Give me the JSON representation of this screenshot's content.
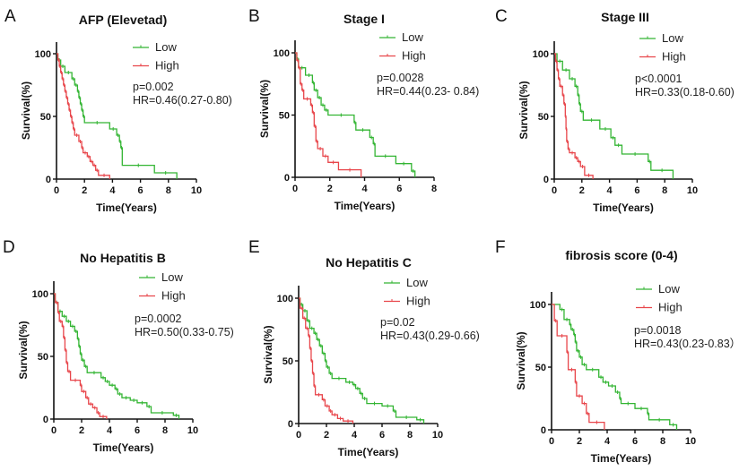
{
  "colors": {
    "Low": "#33b533",
    "High": "#e8464b",
    "axis": "#111111"
  },
  "chart_data": [
    {
      "type": "line",
      "letter": "A",
      "title": "AFP (Elevetad)",
      "xlabel": "Time(Years)",
      "ylabel": "Survival(%)",
      "xlim": [
        0,
        10
      ],
      "ylim": [
        0,
        100
      ],
      "xticks": [
        "0",
        "2",
        "4",
        "6",
        "8",
        "10"
      ],
      "yticks": [
        "0",
        "50",
        "100"
      ],
      "p": "p=0.002",
      "hr": "HR=0.46(0.27-0.80)",
      "legend_position": "top-right",
      "series": [
        {
          "name": "Low",
          "x": [
            0,
            0.1,
            0.3,
            0.6,
            1.1,
            1.3,
            1.5,
            1.6,
            1.7,
            1.8,
            1.9,
            2.0,
            3.8,
            4.3,
            4.5,
            4.6,
            4.7,
            7.0,
            8.6
          ],
          "y": [
            100,
            95,
            90,
            85,
            80,
            75,
            70,
            65,
            60,
            55,
            50,
            45,
            40,
            35,
            30,
            25,
            11,
            5,
            0
          ]
        },
        {
          "name": "High",
          "x": [
            0,
            0.1,
            0.2,
            0.3,
            0.4,
            0.5,
            0.6,
            0.7,
            0.8,
            0.9,
            1.0,
            1.1,
            1.2,
            1.3,
            1.6,
            1.8,
            1.9,
            2.2,
            2.4,
            2.6,
            2.8,
            3.0,
            3.8
          ],
          "y": [
            100,
            95,
            90,
            85,
            80,
            75,
            70,
            65,
            60,
            55,
            50,
            45,
            40,
            35,
            30,
            25,
            21,
            18,
            14,
            11,
            7,
            3,
            0
          ]
        }
      ]
    },
    {
      "type": "line",
      "letter": "B",
      "title": "Stage I",
      "xlabel": "Time(Years)",
      "ylabel": "Survival(%)",
      "xlim": [
        0,
        8
      ],
      "ylim": [
        0,
        100
      ],
      "xticks": [
        "0",
        "2",
        "4",
        "6",
        "8"
      ],
      "yticks": [
        "0",
        "50",
        "100"
      ],
      "p": "p=0.0028",
      "hr": "HR=0.44(0.23- 0.84)",
      "legend_position": "top-right",
      "series": [
        {
          "name": "Low",
          "x": [
            0,
            0.1,
            0.2,
            0.6,
            1.0,
            1.1,
            1.3,
            1.5,
            1.7,
            1.9,
            3.4,
            3.5,
            4.3,
            4.5,
            4.6,
            5.8,
            6.7,
            6.9
          ],
          "y": [
            100,
            95,
            88,
            82,
            76,
            70,
            64,
            58,
            54,
            50,
            44,
            38,
            32,
            27,
            17,
            11,
            5,
            0
          ]
        },
        {
          "name": "High",
          "x": [
            0,
            0.1,
            0.2,
            0.3,
            0.4,
            0.5,
            0.9,
            1.0,
            1.1,
            1.2,
            1.3,
            1.6,
            1.9,
            2.5,
            3.8
          ],
          "y": [
            100,
            94,
            88,
            75,
            70,
            63,
            58,
            52,
            41,
            29,
            23,
            17,
            12,
            6,
            0
          ]
        }
      ]
    },
    {
      "type": "line",
      "letter": "C",
      "title": "Stage III",
      "xlabel": "Time(Years)",
      "ylabel": "Survival(%)",
      "xlim": [
        0,
        10
      ],
      "ylim": [
        0,
        100
      ],
      "xticks": [
        "0",
        "2",
        "4",
        "6",
        "8",
        "10"
      ],
      "yticks": [
        "0",
        "50",
        "100"
      ],
      "p": "p<0.0001",
      "hr": "HR=0.33(0.18-0.60)",
      "legend_position": "top-right",
      "series": [
        {
          "name": "Low",
          "x": [
            0,
            0.2,
            0.6,
            1.1,
            1.5,
            1.7,
            1.8,
            1.9,
            2.1,
            3.3,
            4.1,
            4.4,
            4.9,
            6.8,
            7.0,
            8.6
          ],
          "y": [
            100,
            94,
            87,
            80,
            74,
            67,
            60,
            54,
            47,
            40,
            33,
            27,
            20,
            14,
            7,
            0
          ]
        },
        {
          "name": "High",
          "x": [
            0,
            0.1,
            0.2,
            0.3,
            0.4,
            0.6,
            0.7,
            0.8,
            0.85,
            0.9,
            1.0,
            1.1,
            1.5,
            1.7,
            1.9,
            2.2,
            2.8
          ],
          "y": [
            100,
            94,
            87,
            80,
            74,
            67,
            60,
            50,
            40,
            30,
            24,
            21,
            17,
            14,
            10,
            3,
            0
          ]
        }
      ]
    },
    {
      "type": "line",
      "letter": "D",
      "title": "No Hepatitis B",
      "xlabel": "Time(Years)",
      "ylabel": "Survival(%)",
      "xlim": [
        0,
        10
      ],
      "ylim": [
        0,
        100
      ],
      "xticks": [
        "0",
        "2",
        "4",
        "6",
        "8",
        "10"
      ],
      "yticks": [
        "0",
        "50",
        "100"
      ],
      "p": "p=0.0002",
      "hr": "HR=0.50(0.33-0.75)",
      "legend_position": "top-right",
      "series": [
        {
          "name": "Low",
          "x": [
            0,
            0.1,
            0.3,
            0.6,
            0.9,
            1.2,
            1.5,
            1.7,
            1.8,
            1.9,
            2.0,
            2.2,
            2.4,
            3.4,
            3.7,
            4.0,
            4.4,
            4.6,
            4.9,
            5.5,
            6.0,
            6.7,
            7.0,
            8.6,
            9.0
          ],
          "y": [
            100,
            93,
            86,
            82,
            78,
            74,
            70,
            64,
            58,
            52,
            47,
            42,
            37,
            33,
            30,
            27,
            24,
            20,
            17,
            15,
            13,
            10,
            5,
            3,
            0
          ]
        },
        {
          "name": "High",
          "x": [
            0,
            0.1,
            0.3,
            0.4,
            0.6,
            0.7,
            0.8,
            0.9,
            1.0,
            1.2,
            1.9,
            2.0,
            2.3,
            2.5,
            2.8,
            3.1,
            3.3,
            3.8
          ],
          "y": [
            100,
            93,
            85,
            78,
            74,
            65,
            55,
            45,
            38,
            31,
            27,
            22,
            17,
            12,
            9,
            5,
            2,
            0
          ]
        }
      ]
    },
    {
      "type": "line",
      "letter": "E",
      "title": "No Hepatitis C",
      "xlabel": "Time(Years)",
      "ylabel": "Survival(%)",
      "xlim": [
        0,
        10
      ],
      "ylim": [
        0,
        100
      ],
      "xticks": [
        "0",
        "2",
        "4",
        "6",
        "8",
        "10"
      ],
      "yticks": [
        "0",
        "50",
        "100"
      ],
      "p": "p=0.02",
      "hr": "HR=0.43(0.29-0.66)",
      "legend_position": "top-right",
      "series": [
        {
          "name": "Low",
          "x": [
            0,
            0.1,
            0.3,
            0.6,
            0.8,
            1.1,
            1.3,
            1.5,
            1.7,
            1.9,
            2.0,
            2.2,
            2.4,
            3.4,
            3.9,
            4.1,
            4.4,
            4.6,
            4.9,
            6.0,
            6.8,
            7.0,
            8.5,
            9.0
          ],
          "y": [
            100,
            95,
            90,
            82,
            76,
            72,
            67,
            62,
            56,
            50,
            45,
            40,
            36,
            33,
            31,
            28,
            24,
            20,
            16,
            14,
            10,
            5,
            3,
            0
          ]
        },
        {
          "name": "High",
          "x": [
            0,
            0.1,
            0.3,
            0.5,
            0.7,
            0.8,
            0.9,
            1.0,
            1.1,
            1.2,
            1.7,
            1.9,
            2.2,
            2.4,
            2.8,
            3.2,
            3.9
          ],
          "y": [
            100,
            92,
            84,
            76,
            70,
            60,
            50,
            40,
            30,
            23,
            19,
            14,
            10,
            7,
            4,
            2,
            0
          ]
        }
      ]
    },
    {
      "type": "line",
      "letter": "F",
      "title": "fibrosis score (0-4)",
      "xlabel": "Time(Years)",
      "ylabel": "Survival(%)",
      "xlim": [
        0,
        10
      ],
      "ylim": [
        0,
        100
      ],
      "xticks": [
        "0",
        "2",
        "4",
        "6",
        "8",
        "10"
      ],
      "yticks": [
        "0",
        "50",
        "100"
      ],
      "p": "p=0.0018",
      "hr": "HR=0.43(0.23-0.83）",
      "legend_position": "top-right",
      "series": [
        {
          "name": "Low",
          "x": [
            0,
            0.6,
            0.9,
            1.3,
            1.4,
            1.6,
            1.7,
            1.8,
            2.0,
            2.2,
            2.5,
            3.4,
            3.7,
            4.1,
            4.6,
            4.9,
            5.0,
            6.0,
            6.9,
            7.0,
            8.5,
            9.0
          ],
          "y": [
            100,
            96,
            88,
            84,
            80,
            76,
            70,
            63,
            58,
            52,
            48,
            42,
            38,
            35,
            30,
            25,
            21,
            17,
            13,
            8,
            4,
            0
          ]
        },
        {
          "name": "High",
          "x": [
            0,
            0.2,
            0.4,
            1.1,
            1.2,
            1.7,
            1.8,
            2.2,
            2.5,
            2.7,
            3.8
          ],
          "y": [
            100,
            87,
            75,
            62,
            48,
            38,
            27,
            21,
            13,
            6,
            0
          ]
        }
      ]
    }
  ]
}
